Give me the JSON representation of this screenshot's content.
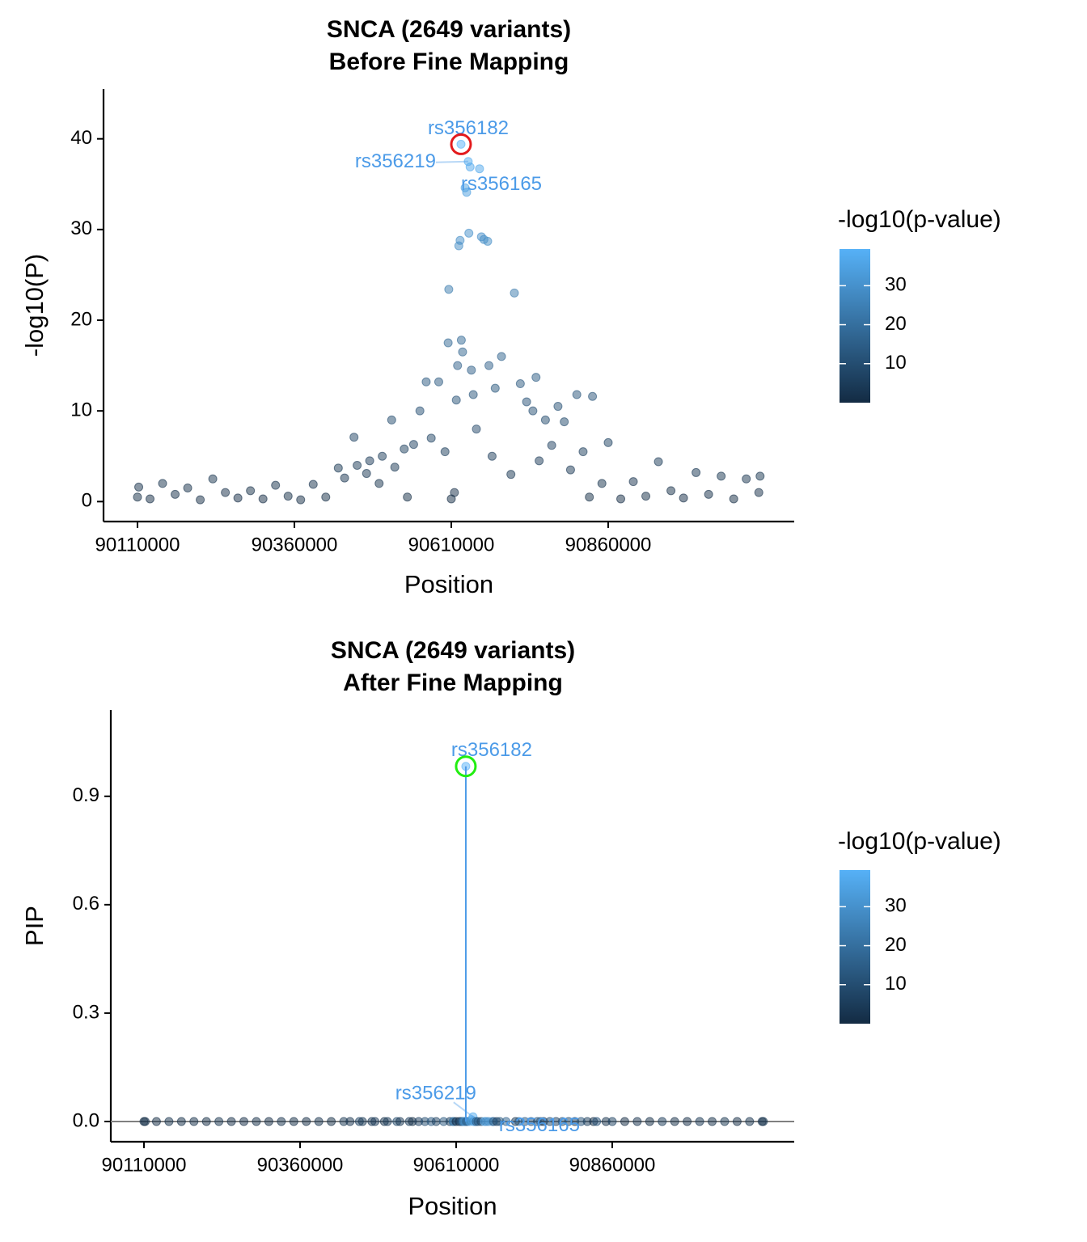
{
  "chart_data": [
    {
      "type": "scatter",
      "title": "SNCA (2649 variants)",
      "subtitle": "Before Fine Mapping",
      "x_label": "Position",
      "y_label": "-log10(P)",
      "legend_title": "-log10(p-value)",
      "colorscale": [
        "#132B43",
        "#56B1F7"
      ],
      "clim": [
        0,
        39.4
      ],
      "cticks": [
        10,
        20,
        30
      ],
      "xlim": [
        90055900,
        91156400
      ],
      "ylim": [
        -2.2,
        45.5
      ],
      "xticks": [
        90110000,
        90360000,
        90610000,
        90860000
      ],
      "yticks": [
        0,
        10,
        20,
        30,
        40
      ],
      "label_color": "#4C9BE8",
      "x": [
        90110000,
        90112000,
        90130000,
        90150000,
        90170000,
        90190000,
        90210000,
        90230000,
        90250000,
        90270000,
        90290000,
        90310000,
        90330000,
        90350000,
        90370000,
        90390000,
        90410000,
        90430000,
        90440000,
        90455000,
        90460000,
        90475000,
        90480000,
        90495000,
        90500000,
        90515000,
        90520000,
        90535000,
        90540000,
        90550000,
        90560000,
        90570000,
        90578000,
        90590000,
        90600000,
        90605000,
        90606000,
        90610000,
        90615000,
        90618000,
        90620000,
        90622000,
        90624000,
        90625464,
        90626000,
        90628000,
        90632000,
        90634485,
        90637000,
        90638000,
        90640000,
        90642000,
        90645000,
        90650000,
        90655000,
        90658000,
        90662000,
        90668000,
        90670000,
        90675000,
        90680000,
        90690000,
        90710515,
        90705000,
        90720000,
        90730000,
        90740000,
        90745000,
        90750000,
        90760000,
        90770000,
        90780000,
        90790000,
        90800000,
        90810000,
        90820000,
        90830000,
        90835000,
        90850000,
        90860000,
        90880000,
        90900000,
        90920000,
        90940000,
        90960000,
        90980000,
        91000000,
        91020000,
        91040000,
        91060000,
        91080000,
        91100000,
        91102000
      ],
      "values": [
        0.5,
        1.6,
        0.3,
        2.0,
        0.8,
        1.5,
        0.2,
        2.5,
        1.0,
        0.4,
        1.2,
        0.3,
        1.8,
        0.6,
        0.2,
        1.9,
        0.5,
        3.7,
        2.6,
        7.1,
        4.0,
        3.1,
        4.5,
        2.0,
        5.0,
        9.0,
        3.8,
        5.8,
        0.5,
        6.3,
        10.0,
        13.2,
        7.0,
        13.2,
        5.5,
        17.5,
        23.4,
        0.3,
        1.0,
        11.2,
        15.0,
        28.2,
        28.8,
        39.4,
        17.8,
        16.5,
        34.6,
        34.1,
        37.5,
        29.6,
        36.9,
        14.5,
        11.8,
        8.0,
        36.7,
        29.2,
        28.9,
        28.7,
        15.0,
        5.0,
        12.5,
        16.0,
        23.0,
        3.0,
        13.0,
        11.0,
        10.0,
        13.7,
        4.5,
        9.0,
        6.2,
        10.5,
        8.8,
        3.5,
        11.8,
        5.5,
        0.5,
        11.6,
        2.0,
        6.5,
        0.3,
        2.2,
        0.6,
        4.4,
        1.2,
        0.4,
        3.2,
        0.8,
        2.8,
        0.3,
        2.5,
        1.0,
        2.8
      ],
      "color_values": [
        0.5,
        1.6,
        0.3,
        2.0,
        0.8,
        1.5,
        0.2,
        2.5,
        1.0,
        0.4,
        1.2,
        0.3,
        1.8,
        0.6,
        0.2,
        1.9,
        0.5,
        3.7,
        2.6,
        7.1,
        4.0,
        3.1,
        4.5,
        2.0,
        5.0,
        9.0,
        3.8,
        5.8,
        0.5,
        6.3,
        10.0,
        13.2,
        7.0,
        13.2,
        5.5,
        17.5,
        23.4,
        0.3,
        1.0,
        11.2,
        15.0,
        28.2,
        28.8,
        39.4,
        17.8,
        16.5,
        34.6,
        34.1,
        37.5,
        29.6,
        36.9,
        14.5,
        11.8,
        8.0,
        36.7,
        29.2,
        28.9,
        28.7,
        15.0,
        5.0,
        12.5,
        16.0,
        23.0,
        3.0,
        13.0,
        11.0,
        10.0,
        13.7,
        4.5,
        9.0,
        6.2,
        10.5,
        8.8,
        3.5,
        11.8,
        5.5,
        0.5,
        11.6,
        2.0,
        6.5,
        0.3,
        2.2,
        0.6,
        4.4,
        1.2,
        0.4,
        3.2,
        0.8,
        2.8,
        0.3,
        2.5,
        1.0,
        2.8
      ],
      "annotations": [
        {
          "text": "rs356182",
          "x": 90625464,
          "y": 39.4
        },
        {
          "text": "rs356219",
          "x": 90637000,
          "y": 37.5
        },
        {
          "text": "rs356165",
          "x": 90634485,
          "y": 34.1
        }
      ],
      "highlight": {
        "x": 90625464,
        "y": 39.4,
        "color": "#e31a1c"
      }
    },
    {
      "type": "scatter",
      "title": "SNCA (2649 variants)",
      "subtitle": "After Fine Mapping",
      "x_label": "Position",
      "y_label": "PIP",
      "legend_title": "-log10(p-value)",
      "colorscale": [
        "#132B43",
        "#56B1F7"
      ],
      "clim": [
        0,
        39.4
      ],
      "cticks": [
        10,
        20,
        30
      ],
      "xlim": [
        90056891,
        91151451
      ],
      "ylim": [
        -0.056,
        1.139
      ],
      "xticks": [
        90110000,
        90360000,
        90610000,
        90860000
      ],
      "yticks": [
        {
          "value": 0,
          "label": "0.0"
        },
        0.3,
        0.6,
        0.9
      ],
      "hline": 0,
      "hline_color": "#808080",
      "label_color": "#4C9BE8",
      "x": [
        90110000,
        90112000,
        90130000,
        90150000,
        90170000,
        90190000,
        90210000,
        90230000,
        90250000,
        90270000,
        90290000,
        90310000,
        90330000,
        90350000,
        90370000,
        90390000,
        90410000,
        90430000,
        90440000,
        90455000,
        90460000,
        90475000,
        90480000,
        90495000,
        90500000,
        90515000,
        90520000,
        90535000,
        90540000,
        90550000,
        90560000,
        90570000,
        90578000,
        90590000,
        90600000,
        90605000,
        90606000,
        90610000,
        90615000,
        90618000,
        90620000,
        90622000,
        90624000,
        90625464,
        90626000,
        90628000,
        90632000,
        90634485,
        90637000,
        90638000,
        90640000,
        90642000,
        90645000,
        90650000,
        90655000,
        90658000,
        90662000,
        90668000,
        90670000,
        90675000,
        90680000,
        90690000,
        90710515,
        90705000,
        90720000,
        90730000,
        90740000,
        90745000,
        90750000,
        90760000,
        90770000,
        90780000,
        90790000,
        90800000,
        90810000,
        90820000,
        90830000,
        90835000,
        90850000,
        90860000,
        90880000,
        90900000,
        90920000,
        90940000,
        90960000,
        90980000,
        91000000,
        91020000,
        91040000,
        91060000,
        91080000,
        91100000,
        91102000
      ],
      "values": [
        0,
        0,
        0,
        0,
        0,
        0,
        0,
        0,
        0,
        0,
        0,
        0,
        0,
        0,
        0,
        0,
        0,
        0,
        0,
        0,
        0,
        0,
        0,
        0,
        0,
        0,
        0,
        0,
        0,
        0,
        0,
        0,
        0,
        0,
        0,
        0,
        0,
        0,
        0,
        0,
        0,
        0,
        0,
        0.983,
        0,
        0,
        0,
        0.005,
        0.013,
        0,
        0,
        0,
        0,
        0,
        0,
        0,
        0,
        0,
        0,
        0,
        0,
        0,
        0,
        0,
        0,
        0,
        0,
        0,
        0,
        0,
        0,
        0,
        0,
        0,
        0,
        0,
        0,
        0,
        0,
        0,
        0,
        0,
        0,
        0,
        0,
        0,
        0,
        0,
        0,
        0,
        0,
        0,
        0
      ],
      "color_values": [
        0.5,
        1.6,
        0.3,
        2.0,
        0.8,
        1.5,
        0.2,
        2.5,
        1.0,
        0.4,
        1.2,
        0.3,
        1.8,
        0.6,
        0.2,
        1.9,
        0.5,
        3.7,
        2.6,
        7.1,
        4.0,
        3.1,
        4.5,
        2.0,
        5.0,
        9.0,
        3.8,
        5.8,
        0.5,
        6.3,
        10.0,
        13.2,
        7.0,
        13.2,
        5.5,
        17.5,
        23.4,
        0.3,
        1.0,
        11.2,
        15.0,
        28.2,
        28.8,
        39.4,
        17.8,
        16.5,
        34.6,
        34.1,
        37.5,
        29.6,
        36.9,
        14.5,
        11.8,
        8.0,
        36.7,
        29.2,
        28.9,
        28.7,
        15.0,
        5.0,
        12.5,
        16.0,
        23.0,
        3.0,
        13.0,
        11.0,
        10.0,
        13.7,
        4.5,
        9.0,
        6.2,
        10.5,
        8.8,
        3.5,
        11.8,
        5.5,
        0.5,
        11.6,
        2.0,
        6.5,
        0.3,
        2.2,
        0.6,
        4.4,
        1.2,
        0.4,
        3.2,
        0.8,
        2.8,
        0.3,
        2.5,
        1.0,
        2.8
      ],
      "annotations": [
        {
          "text": "rs356182",
          "x": 90625464,
          "y": 0.983
        },
        {
          "text": "rs356219",
          "x": 90637000,
          "y": 0.013
        },
        {
          "text": "rs356165",
          "x": 90634485,
          "y": 0.005
        }
      ],
      "highlight": {
        "x": 90625464,
        "y": 0.983,
        "color": "#22ee11"
      }
    }
  ]
}
